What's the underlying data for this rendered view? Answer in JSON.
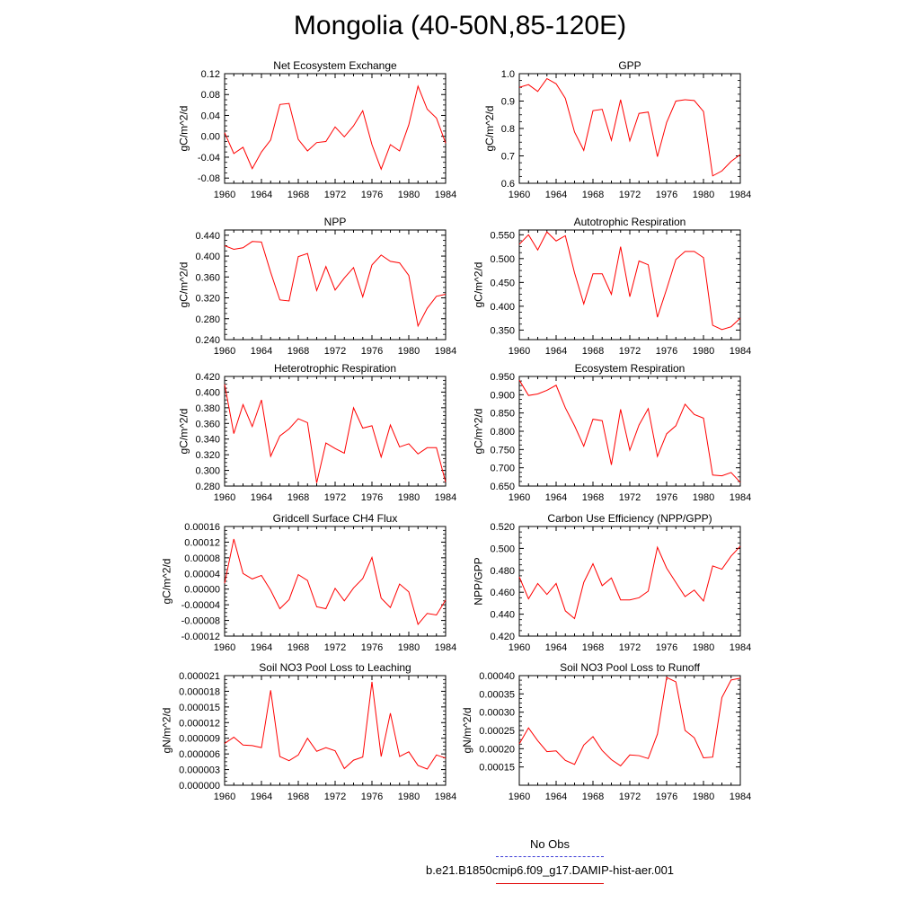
{
  "title": "Mongolia (40-50N,85-120E)",
  "legend": {
    "entries": [
      {
        "label": "No Obs",
        "color": "#3a3ad6",
        "style": "dashed"
      },
      {
        "label": "b.e21.B1850cmip6.f09_g17.DAMIP-hist-aer.001",
        "color": "#e00000",
        "style": "solid"
      }
    ]
  },
  "line_color": "#ff0000",
  "chart_data": [
    {
      "type": "line",
      "title": "Net Ecosystem Exchange",
      "ylabel": "gC/m^2/d",
      "xlim": [
        1960,
        1984
      ],
      "ylim": [
        -0.09,
        0.12
      ],
      "xticks": [
        "1960",
        "1964",
        "1968",
        "1972",
        "1976",
        "1980",
        "1984"
      ],
      "yticks": [
        "-0.08",
        "-0.04",
        "0.00",
        "0.04",
        "0.08",
        "0.12"
      ],
      "ytick_values": [
        -0.08,
        -0.04,
        0,
        0.04,
        0.08,
        0.12
      ],
      "x": [
        1960,
        1961,
        1962,
        1963,
        1964,
        1965,
        1966,
        1967,
        1968,
        1969,
        1970,
        1971,
        1972,
        1973,
        1974,
        1975,
        1976,
        1977,
        1978,
        1979,
        1980,
        1981,
        1982,
        1983,
        1984
      ],
      "series": [
        {
          "values": [
            0.007,
            -0.033,
            -0.021,
            -0.062,
            -0.03,
            -0.007,
            0.061,
            0.063,
            -0.006,
            -0.028,
            -0.012,
            -0.01,
            0.018,
            -0.001,
            0.02,
            0.049,
            -0.016,
            -0.063,
            -0.016,
            -0.028,
            0.022,
            0.096,
            0.052,
            0.035,
            -0.013
          ]
        }
      ]
    },
    {
      "type": "line",
      "title": "GPP",
      "ylabel": "gC/m^2/d",
      "xlim": [
        1960,
        1984
      ],
      "ylim": [
        0.6,
        1.0
      ],
      "xticks": [
        "1960",
        "1964",
        "1968",
        "1972",
        "1976",
        "1980",
        "1984"
      ],
      "yticks": [
        "0.6",
        "0.7",
        "0.8",
        "0.9",
        "1.0"
      ],
      "ytick_values": [
        0.6,
        0.7,
        0.8,
        0.9,
        1.0
      ],
      "x": [
        1960,
        1961,
        1962,
        1963,
        1964,
        1965,
        1966,
        1967,
        1968,
        1969,
        1970,
        1971,
        1972,
        1973,
        1974,
        1975,
        1976,
        1977,
        1978,
        1979,
        1980,
        1981,
        1982,
        1983,
        1984
      ],
      "series": [
        {
          "values": [
            0.95,
            0.96,
            0.935,
            0.982,
            0.963,
            0.91,
            0.787,
            0.72,
            0.865,
            0.87,
            0.757,
            0.905,
            0.755,
            0.855,
            0.86,
            0.697,
            0.822,
            0.9,
            0.905,
            0.902,
            0.862,
            0.627,
            0.645,
            0.68,
            0.705
          ]
        }
      ]
    },
    {
      "type": "line",
      "title": "NPP",
      "ylabel": "gC/m^2/d",
      "xlim": [
        1960,
        1984
      ],
      "ylim": [
        0.24,
        0.45
      ],
      "xticks": [
        "1960",
        "1964",
        "1968",
        "1972",
        "1976",
        "1980",
        "1984"
      ],
      "yticks": [
        "0.240",
        "0.280",
        "0.320",
        "0.360",
        "0.400",
        "0.440"
      ],
      "ytick_values": [
        0.24,
        0.28,
        0.32,
        0.36,
        0.4,
        0.44
      ],
      "x": [
        1960,
        1961,
        1962,
        1963,
        1964,
        1965,
        1966,
        1967,
        1968,
        1969,
        1970,
        1971,
        1972,
        1973,
        1974,
        1975,
        1976,
        1977,
        1978,
        1979,
        1980,
        1981,
        1982,
        1983,
        1984
      ],
      "series": [
        {
          "values": [
            0.42,
            0.413,
            0.416,
            0.428,
            0.427,
            0.369,
            0.316,
            0.314,
            0.399,
            0.405,
            0.334,
            0.38,
            0.335,
            0.358,
            0.378,
            0.322,
            0.383,
            0.402,
            0.39,
            0.387,
            0.363,
            0.266,
            0.3,
            0.323,
            0.327
          ]
        }
      ]
    },
    {
      "type": "line",
      "title": "Autotrophic Respiration",
      "ylabel": "gC/m^2/d",
      "xlim": [
        1960,
        1984
      ],
      "ylim": [
        0.33,
        0.56
      ],
      "xticks": [
        "1960",
        "1964",
        "1968",
        "1972",
        "1976",
        "1980",
        "1984"
      ],
      "yticks": [
        "0.350",
        "0.400",
        "0.450",
        "0.500",
        "0.550"
      ],
      "ytick_values": [
        0.35,
        0.4,
        0.45,
        0.5,
        0.55
      ],
      "x": [
        1960,
        1961,
        1962,
        1963,
        1964,
        1965,
        1966,
        1967,
        1968,
        1969,
        1970,
        1971,
        1972,
        1973,
        1974,
        1975,
        1976,
        1977,
        1978,
        1979,
        1980,
        1981,
        1982,
        1983,
        1984
      ],
      "series": [
        {
          "values": [
            0.53,
            0.55,
            0.518,
            0.556,
            0.537,
            0.548,
            0.47,
            0.405,
            0.468,
            0.468,
            0.425,
            0.525,
            0.42,
            0.495,
            0.487,
            0.377,
            0.436,
            0.498,
            0.515,
            0.515,
            0.502,
            0.36,
            0.351,
            0.357,
            0.375
          ]
        }
      ]
    },
    {
      "type": "line",
      "title": "Heterotrophic Respiration",
      "ylabel": "gC/m^2/d",
      "xlim": [
        1960,
        1984
      ],
      "ylim": [
        0.28,
        0.42
      ],
      "xticks": [
        "1960",
        "1964",
        "1968",
        "1972",
        "1976",
        "1980",
        "1984"
      ],
      "yticks": [
        "0.280",
        "0.300",
        "0.320",
        "0.340",
        "0.360",
        "0.380",
        "0.400",
        "0.420"
      ],
      "ytick_values": [
        0.28,
        0.3,
        0.32,
        0.34,
        0.36,
        0.38,
        0.4,
        0.42
      ],
      "x": [
        1960,
        1961,
        1962,
        1963,
        1964,
        1965,
        1966,
        1967,
        1968,
        1969,
        1970,
        1971,
        1972,
        1973,
        1974,
        1975,
        1976,
        1977,
        1978,
        1979,
        1980,
        1981,
        1982,
        1983,
        1984
      ],
      "series": [
        {
          "values": [
            0.41,
            0.347,
            0.384,
            0.356,
            0.39,
            0.318,
            0.344,
            0.353,
            0.366,
            0.361,
            0.284,
            0.335,
            0.328,
            0.322,
            0.38,
            0.354,
            0.357,
            0.317,
            0.358,
            0.33,
            0.334,
            0.321,
            0.329,
            0.329,
            0.285
          ]
        }
      ]
    },
    {
      "type": "line",
      "title": "Ecosystem Respiration",
      "ylabel": "gC/m^2/d",
      "xlim": [
        1960,
        1984
      ],
      "ylim": [
        0.65,
        0.95
      ],
      "xticks": [
        "1960",
        "1964",
        "1968",
        "1972",
        "1976",
        "1980",
        "1984"
      ],
      "yticks": [
        "0.650",
        "0.700",
        "0.750",
        "0.800",
        "0.850",
        "0.900",
        "0.950"
      ],
      "ytick_values": [
        0.65,
        0.7,
        0.75,
        0.8,
        0.85,
        0.9,
        0.95
      ],
      "x": [
        1960,
        1961,
        1962,
        1963,
        1964,
        1965,
        1966,
        1967,
        1968,
        1969,
        1970,
        1971,
        1972,
        1973,
        1974,
        1975,
        1976,
        1977,
        1978,
        1979,
        1980,
        1981,
        1982,
        1983,
        1984
      ],
      "series": [
        {
          "values": [
            0.94,
            0.898,
            0.902,
            0.912,
            0.926,
            0.864,
            0.815,
            0.759,
            0.833,
            0.829,
            0.708,
            0.86,
            0.748,
            0.817,
            0.862,
            0.731,
            0.793,
            0.815,
            0.874,
            0.846,
            0.836,
            0.68,
            0.678,
            0.687,
            0.66
          ]
        }
      ]
    },
    {
      "type": "line",
      "title": "Gridcell Surface CH4 Flux",
      "ylabel": "gC/m^2/d",
      "xlim": [
        1960,
        1984
      ],
      "ylim": [
        -0.00012,
        0.00016
      ],
      "xticks": [
        "1960",
        "1964",
        "1968",
        "1972",
        "1976",
        "1980",
        "1984"
      ],
      "yticks": [
        "-0.00012",
        "-0.00008",
        "-0.00004",
        "0.00000",
        "0.00004",
        "0.00008",
        "0.00012",
        "0.00016"
      ],
      "ytick_values": [
        -0.00012,
        -8e-05,
        -4e-05,
        0,
        4e-05,
        8e-05,
        0.00012,
        0.00016
      ],
      "x": [
        1960,
        1961,
        1962,
        1963,
        1964,
        1965,
        1966,
        1967,
        1968,
        1969,
        1970,
        1971,
        1972,
        1973,
        1974,
        1975,
        1976,
        1977,
        1978,
        1979,
        1980,
        1981,
        1982,
        1983,
        1984
      ],
      "series": [
        {
          "values": [
            1.5e-05,
            0.000128,
            4e-05,
            2.6e-05,
            3.5e-05,
            -3e-06,
            -5e-05,
            -2.7e-05,
            3.7e-05,
            2.2e-05,
            -4.5e-05,
            -5e-05,
            2e-06,
            -3e-05,
            3e-06,
            2.7e-05,
            8.1e-05,
            -2.3e-05,
            -4.7e-05,
            1.3e-05,
            -7e-06,
            -9e-05,
            -6.2e-05,
            -6.6e-05,
            -2.8e-05
          ]
        }
      ]
    },
    {
      "type": "line",
      "title": "Carbon Use Efficiency (NPP/GPP)",
      "ylabel": "NPP/GPP",
      "xlim": [
        1960,
        1984
      ],
      "ylim": [
        0.42,
        0.52
      ],
      "xticks": [
        "1960",
        "1964",
        "1968",
        "1972",
        "1976",
        "1980",
        "1984"
      ],
      "yticks": [
        "0.420",
        "0.440",
        "0.460",
        "0.480",
        "0.500",
        "0.520"
      ],
      "ytick_values": [
        0.42,
        0.44,
        0.46,
        0.48,
        0.5,
        0.52
      ],
      "x": [
        1960,
        1961,
        1962,
        1963,
        1964,
        1965,
        1966,
        1967,
        1968,
        1969,
        1970,
        1971,
        1972,
        1973,
        1974,
        1975,
        1976,
        1977,
        1978,
        1979,
        1980,
        1981,
        1982,
        1983,
        1984
      ],
      "series": [
        {
          "values": [
            0.474,
            0.454,
            0.468,
            0.458,
            0.468,
            0.443,
            0.436,
            0.469,
            0.486,
            0.466,
            0.473,
            0.453,
            0.453,
            0.455,
            0.461,
            0.501,
            0.482,
            0.469,
            0.456,
            0.462,
            0.452,
            0.484,
            0.481,
            0.493,
            0.502
          ]
        }
      ]
    },
    {
      "type": "line",
      "title": "Soil NO3 Pool Loss to Leaching",
      "ylabel": "gN/m^2/d",
      "xlim": [
        1960,
        1984
      ],
      "ylim": [
        0.0,
        2.1e-05
      ],
      "xticks": [
        "1960",
        "1964",
        "1968",
        "1972",
        "1976",
        "1980",
        "1984"
      ],
      "yticks": [
        "0.000000",
        "0.000003",
        "0.000006",
        "0.000009",
        "0.000012",
        "0.000015",
        "0.000018",
        "0.000021"
      ],
      "ytick_values": [
        0,
        3e-06,
        6e-06,
        9e-06,
        1.2e-05,
        1.5e-05,
        1.8e-05,
        2.1e-05
      ],
      "x": [
        1960,
        1961,
        1962,
        1963,
        1964,
        1965,
        1966,
        1967,
        1968,
        1969,
        1970,
        1971,
        1972,
        1973,
        1974,
        1975,
        1976,
        1977,
        1978,
        1979,
        1980,
        1981,
        1982,
        1983,
        1984
      ],
      "series": [
        {
          "values": [
            8e-06,
            9.2e-06,
            7.7e-06,
            7.6e-06,
            7.2e-06,
            1.82e-05,
            5.5e-06,
            4.7e-06,
            5.8e-06,
            9e-06,
            6.5e-06,
            7.2e-06,
            6.6e-06,
            3.2e-06,
            4.8e-06,
            5.4e-06,
            1.98e-05,
            5.5e-06,
            1.38e-05,
            5.5e-06,
            6.4e-06,
            3.8e-06,
            3.1e-06,
            5.8e-06,
            5.2e-06
          ]
        }
      ]
    },
    {
      "type": "line",
      "title": "Soil NO3 Pool Loss to Runoff",
      "ylabel": "gN/m^2/d",
      "xlim": [
        1960,
        1984
      ],
      "ylim": [
        0.0001,
        0.0004
      ],
      "xticks": [
        "1960",
        "1964",
        "1968",
        "1972",
        "1976",
        "1980",
        "1984"
      ],
      "yticks": [
        "0.00015",
        "0.00020",
        "0.00025",
        "0.00030",
        "0.00035",
        "0.00040"
      ],
      "ytick_values": [
        0.00015,
        0.0002,
        0.00025,
        0.0003,
        0.00035,
        0.0004
      ],
      "x": [
        1960,
        1961,
        1962,
        1963,
        1964,
        1965,
        1966,
        1967,
        1968,
        1969,
        1970,
        1971,
        1972,
        1973,
        1974,
        1975,
        1976,
        1977,
        1978,
        1979,
        1980,
        1981,
        1982,
        1983,
        1984
      ],
      "series": [
        {
          "values": [
            0.000213,
            0.000257,
            0.000222,
            0.000192,
            0.000194,
            0.000168,
            0.000157,
            0.00021,
            0.000233,
            0.000195,
            0.00017,
            0.000153,
            0.000183,
            0.000181,
            0.000173,
            0.00024,
            0.000395,
            0.000383,
            0.00025,
            0.00023,
            0.000175,
            0.000177,
            0.00034,
            0.000388,
            0.000393
          ]
        }
      ]
    }
  ]
}
